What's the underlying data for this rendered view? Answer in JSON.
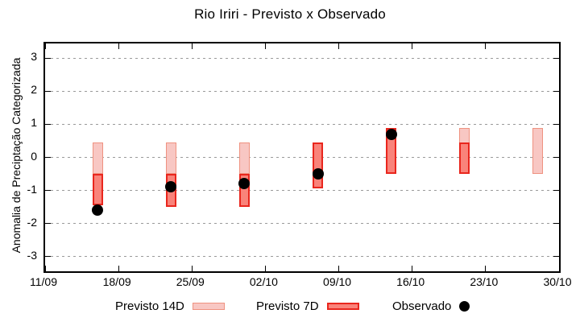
{
  "chart_data": {
    "type": "range-bar",
    "title": "Rio Iriri - Previsto x Observado",
    "ylabel": "Anomalia de Preciptação Categorizada",
    "xlabel": "",
    "ylim": [
      -3.45,
      3.45
    ],
    "yticks": [
      3,
      2,
      1,
      0,
      -1,
      -2,
      -3
    ],
    "grid": "horizontal dotted",
    "x_axis": {
      "tick_labels": [
        "11/09",
        "18/09",
        "25/09",
        "02/10",
        "09/10",
        "16/10",
        "23/10",
        "30/10"
      ],
      "tick_days": [
        0,
        7,
        14,
        21,
        28,
        35,
        42,
        49
      ],
      "total_days": 49
    },
    "clusters": [
      {
        "date": "16/09",
        "day": 5,
        "previsto_14d": [
          -0.5,
          0.45
        ],
        "previsto_7d": [
          -1.45,
          -0.5
        ],
        "observado": -1.6
      },
      {
        "date": "23/09",
        "day": 12,
        "previsto_14d": [
          -0.5,
          0.45
        ],
        "previsto_7d": [
          -1.5,
          -0.5
        ],
        "observado": -0.9
      },
      {
        "date": "30/09",
        "day": 19,
        "previsto_14d": [
          -0.5,
          0.45
        ],
        "previsto_7d": [
          -1.5,
          -0.5
        ],
        "observado": -0.8
      },
      {
        "date": "07/10",
        "day": 26,
        "previsto_14d": null,
        "previsto_7d": [
          -0.95,
          0.45
        ],
        "observado": -0.5
      },
      {
        "date": "14/10",
        "day": 33,
        "previsto_14d": null,
        "previsto_7d": [
          -0.5,
          0.9
        ],
        "observado": 0.7
      },
      {
        "date": "21/10",
        "day": 40,
        "previsto_14d": [
          -0.5,
          0.9
        ],
        "previsto_7d": [
          -0.5,
          0.45
        ],
        "observado": null
      },
      {
        "date": "28/10",
        "day": 47,
        "previsto_14d": [
          -0.5,
          0.9
        ],
        "previsto_7d": null,
        "observado": null
      }
    ],
    "legend": [
      {
        "label": "Previsto 14D",
        "swatch": "14d",
        "left": 143
      },
      {
        "label": "Previsto 7D",
        "swatch": "7d",
        "left": 318
      },
      {
        "label": "Observado",
        "swatch": "dot",
        "left": 487
      }
    ],
    "colors": {
      "previsto_14d_fill": "#f8c7c3",
      "previsto_14d_border": "#ef9280",
      "previsto_7d_fill": "#f9837a",
      "previsto_7d_border": "#e9261d",
      "observado": "#000000",
      "gridline": "#9a9a9a",
      "axis": "#000000",
      "background": "#ffffff"
    }
  }
}
